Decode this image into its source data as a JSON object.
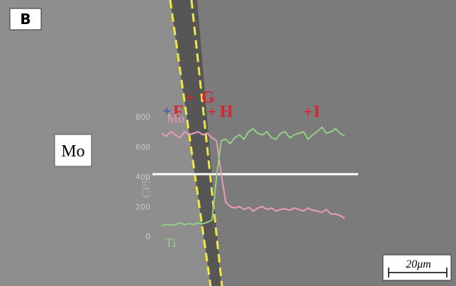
{
  "panel_label": "B",
  "region_label": "Mo",
  "points": [
    "F",
    "G",
    "H",
    "I"
  ],
  "scale_bar": "20μm",
  "chart_data": {
    "type": "line",
    "ylabel": "CPS",
    "x": [
      0,
      1.5,
      3,
      4.5,
      6,
      7.5,
      9,
      10.5,
      12,
      13.5,
      15,
      16.5,
      18,
      19.5,
      21,
      22.5,
      24,
      25.5,
      27,
      28.5,
      30,
      31.5,
      33,
      34.5,
      36,
      37.5,
      39,
      40.5,
      42,
      43.5,
      45,
      46.5,
      48,
      49.5,
      51,
      52.5,
      54,
      55.5,
      57,
      58.5,
      60
    ],
    "xlim": [
      0,
      60
    ],
    "ylim": [
      0,
      800
    ],
    "yticks": [
      0,
      200,
      400,
      600,
      800
    ],
    "series": [
      {
        "name": "Mo",
        "color": "#eb9cbb",
        "values": [
          690,
          670,
          700,
          680,
          660,
          700,
          680,
          690,
          700,
          680,
          690,
          660,
          640,
          420,
          230,
          200,
          190,
          200,
          180,
          195,
          170,
          190,
          200,
          180,
          190,
          170,
          180,
          185,
          175,
          190,
          180,
          170,
          190,
          175,
          170,
          160,
          180,
          150,
          150,
          140,
          120
        ]
      },
      {
        "name": "Ti",
        "color": "#92d085",
        "values": [
          70,
          80,
          75,
          80,
          90,
          80,
          85,
          80,
          90,
          85,
          95,
          110,
          400,
          640,
          650,
          620,
          660,
          680,
          650,
          700,
          720,
          690,
          680,
          700,
          660,
          650,
          690,
          700,
          660,
          680,
          690,
          700,
          650,
          680,
          700,
          730,
          690,
          700,
          720,
          690,
          670
        ]
      }
    ]
  }
}
